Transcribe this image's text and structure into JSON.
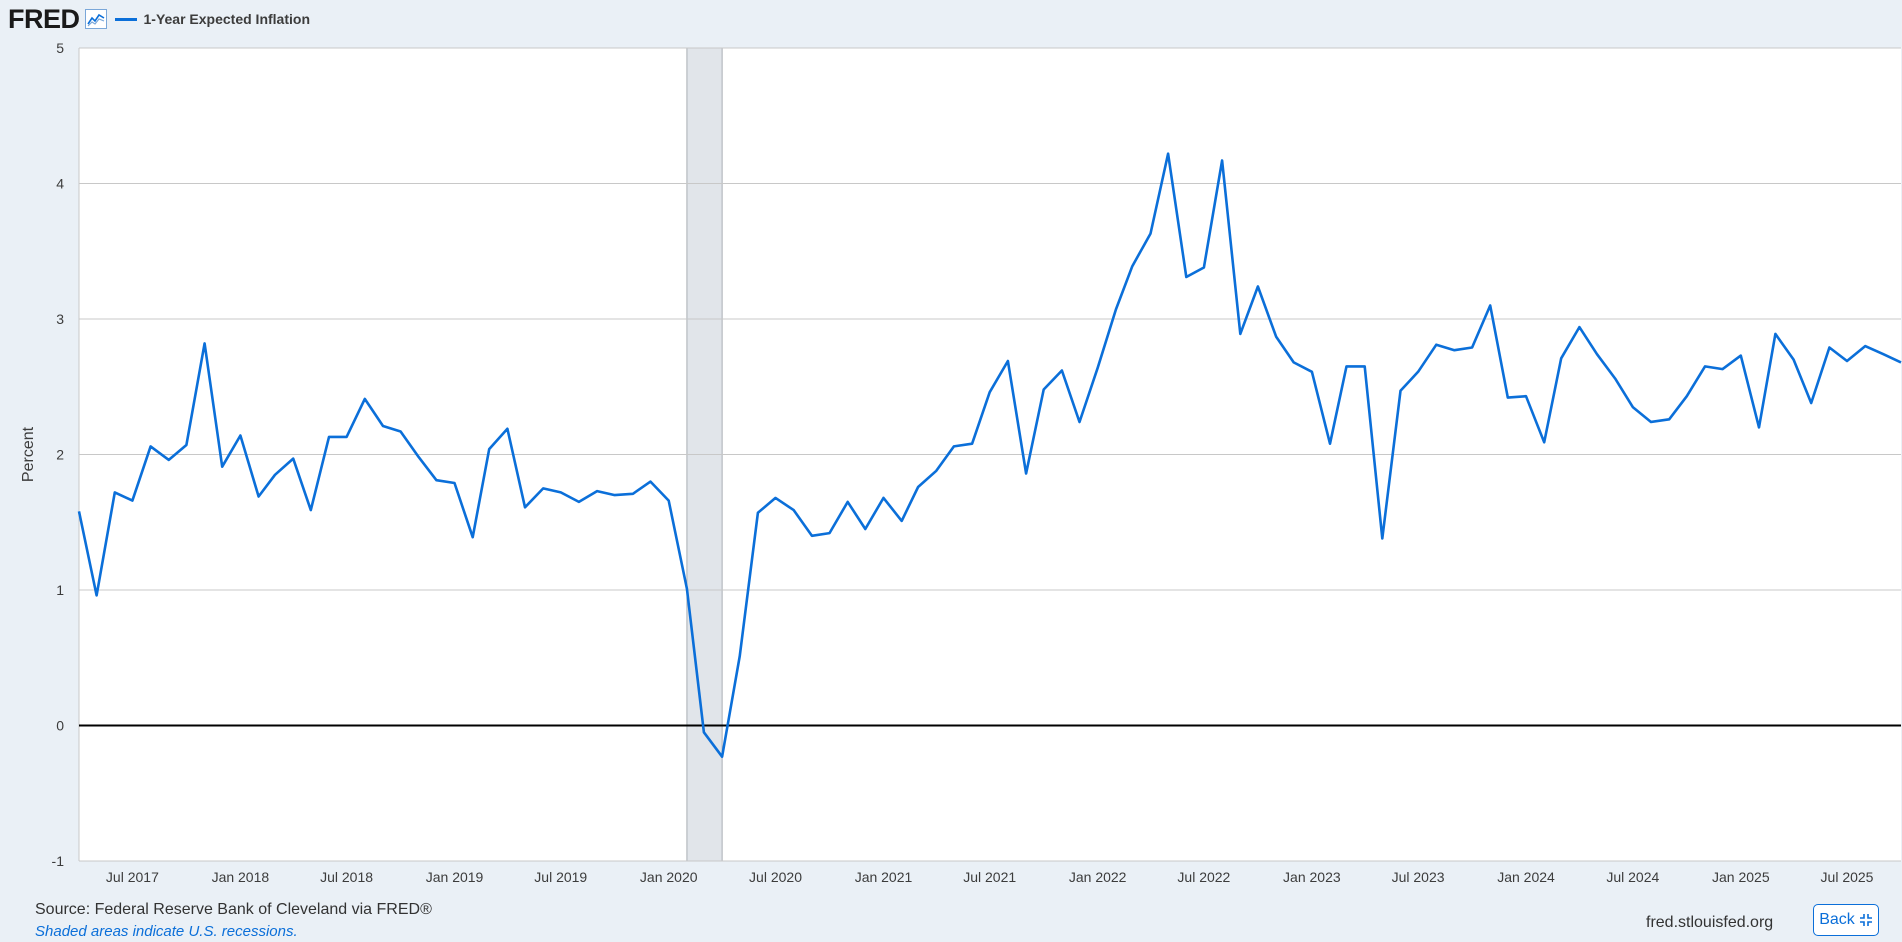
{
  "header": {
    "logo_text": "FRED",
    "logo_icon": "line-chart-icon",
    "legend_label": "1-Year Expected Inflation"
  },
  "footer": {
    "source": "Source: Federal Reserve Bank of Cleveland via FRED®",
    "note": "Shaded areas indicate U.S. recessions.",
    "site": "fred.stlouisfed.org",
    "back_label": "Back",
    "back_icon": "collapse-arrows-icon"
  },
  "colors": {
    "series": "#0b6fd9",
    "recession": "#e1e5ea",
    "grid": "#c8c8c8",
    "zero_line": "#000000"
  },
  "chart_data": {
    "type": "line",
    "title": "",
    "xlabel": "",
    "ylabel": "Percent",
    "ylim": [
      -1,
      5
    ],
    "yticks": [
      -1,
      0,
      1,
      2,
      3,
      4,
      5
    ],
    "xlim": [
      "2017-04-01",
      "2025-10-01"
    ],
    "xticks": [
      {
        "date": "2017-07-01",
        "label": "Jul 2017"
      },
      {
        "date": "2018-01-01",
        "label": "Jan 2018"
      },
      {
        "date": "2018-07-01",
        "label": "Jul 2018"
      },
      {
        "date": "2019-01-01",
        "label": "Jan 2019"
      },
      {
        "date": "2019-07-01",
        "label": "Jul 2019"
      },
      {
        "date": "2020-01-01",
        "label": "Jan 2020"
      },
      {
        "date": "2020-07-01",
        "label": "Jul 2020"
      },
      {
        "date": "2021-01-01",
        "label": "Jan 2021"
      },
      {
        "date": "2021-07-01",
        "label": "Jul 2021"
      },
      {
        "date": "2022-01-01",
        "label": "Jan 2022"
      },
      {
        "date": "2022-07-01",
        "label": "Jul 2022"
      },
      {
        "date": "2023-01-01",
        "label": "Jan 2023"
      },
      {
        "date": "2023-07-01",
        "label": "Jul 2023"
      },
      {
        "date": "2024-01-01",
        "label": "Jan 2024"
      },
      {
        "date": "2024-07-01",
        "label": "Jul 2024"
      },
      {
        "date": "2025-01-01",
        "label": "Jan 2025"
      },
      {
        "date": "2025-07-01",
        "label": "Jul 2025"
      }
    ],
    "recessions": [
      {
        "start": "2020-02-01",
        "end": "2020-04-01"
      }
    ],
    "grid": true,
    "series": [
      {
        "name": "1-Year Expected Inflation",
        "x": [
          "2017-04-01",
          "2017-05-01",
          "2017-06-01",
          "2017-07-01",
          "2017-08-01",
          "2017-09-01",
          "2017-10-01",
          "2017-11-01",
          "2017-12-01",
          "2018-01-01",
          "2018-02-01",
          "2018-03-01",
          "2018-04-01",
          "2018-05-01",
          "2018-06-01",
          "2018-07-01",
          "2018-08-01",
          "2018-09-01",
          "2018-10-01",
          "2018-11-01",
          "2018-12-01",
          "2019-01-01",
          "2019-02-01",
          "2019-03-01",
          "2019-04-01",
          "2019-05-01",
          "2019-06-01",
          "2019-07-01",
          "2019-08-01",
          "2019-09-01",
          "2019-10-01",
          "2019-11-01",
          "2019-12-01",
          "2020-01-01",
          "2020-02-01",
          "2020-03-01",
          "2020-04-01",
          "2020-05-01",
          "2020-06-01",
          "2020-07-01",
          "2020-08-01",
          "2020-09-01",
          "2020-10-01",
          "2020-11-01",
          "2020-12-01",
          "2021-01-01",
          "2021-02-01",
          "2021-03-01",
          "2021-04-01",
          "2021-05-01",
          "2021-06-01",
          "2021-07-01",
          "2021-08-01",
          "2021-09-01",
          "2021-10-01",
          "2021-11-01",
          "2021-12-01",
          "2022-01-01",
          "2022-02-01",
          "2022-03-01",
          "2022-04-01",
          "2022-05-01",
          "2022-06-01",
          "2022-07-01",
          "2022-08-01",
          "2022-09-01",
          "2022-10-01",
          "2022-11-01",
          "2022-12-01",
          "2023-01-01",
          "2023-02-01",
          "2023-03-01",
          "2023-04-01",
          "2023-05-01",
          "2023-06-01",
          "2023-07-01",
          "2023-08-01",
          "2023-09-01",
          "2023-10-01",
          "2023-11-01",
          "2023-12-01",
          "2024-01-01",
          "2024-02-01",
          "2024-03-01",
          "2024-04-01",
          "2024-05-01",
          "2024-06-01",
          "2024-07-01",
          "2024-08-01",
          "2024-09-01",
          "2024-10-01",
          "2024-11-01",
          "2024-12-01",
          "2025-01-01",
          "2025-02-01",
          "2025-03-01",
          "2025-04-01",
          "2025-05-01",
          "2025-06-01",
          "2025-07-01",
          "2025-08-01",
          "2025-09-01",
          "2025-10-01"
        ],
        "values": [
          1.58,
          0.96,
          1.72,
          1.66,
          2.06,
          1.96,
          2.07,
          2.82,
          1.91,
          2.14,
          1.69,
          1.85,
          1.97,
          1.59,
          2.13,
          2.13,
          2.41,
          2.21,
          2.17,
          1.98,
          1.81,
          1.79,
          1.39,
          2.04,
          2.19,
          1.61,
          1.75,
          1.72,
          1.65,
          1.73,
          1.7,
          1.71,
          1.8,
          1.66,
          1.01,
          -0.05,
          -0.23,
          0.51,
          1.57,
          1.68,
          1.59,
          1.4,
          1.42,
          1.65,
          1.45,
          1.68,
          1.51,
          1.76,
          1.88,
          2.06,
          2.08,
          2.46,
          2.69,
          1.86,
          2.48,
          2.62,
          2.24,
          2.64,
          3.07,
          3.39,
          3.63,
          4.22,
          3.31,
          3.38,
          4.17,
          2.89,
          3.24,
          2.87,
          2.68,
          2.61,
          2.08,
          2.65,
          2.65,
          1.38,
          2.47,
          2.61,
          2.81,
          2.77,
          2.79,
          3.1,
          2.42,
          2.43,
          2.09,
          2.71,
          2.94,
          2.74,
          2.56,
          2.35,
          2.24,
          2.26,
          2.43,
          2.65,
          2.63,
          2.73,
          2.2,
          2.89,
          2.7,
          2.38,
          2.79,
          2.69,
          2.8,
          2.74,
          2.68
        ]
      }
    ]
  }
}
